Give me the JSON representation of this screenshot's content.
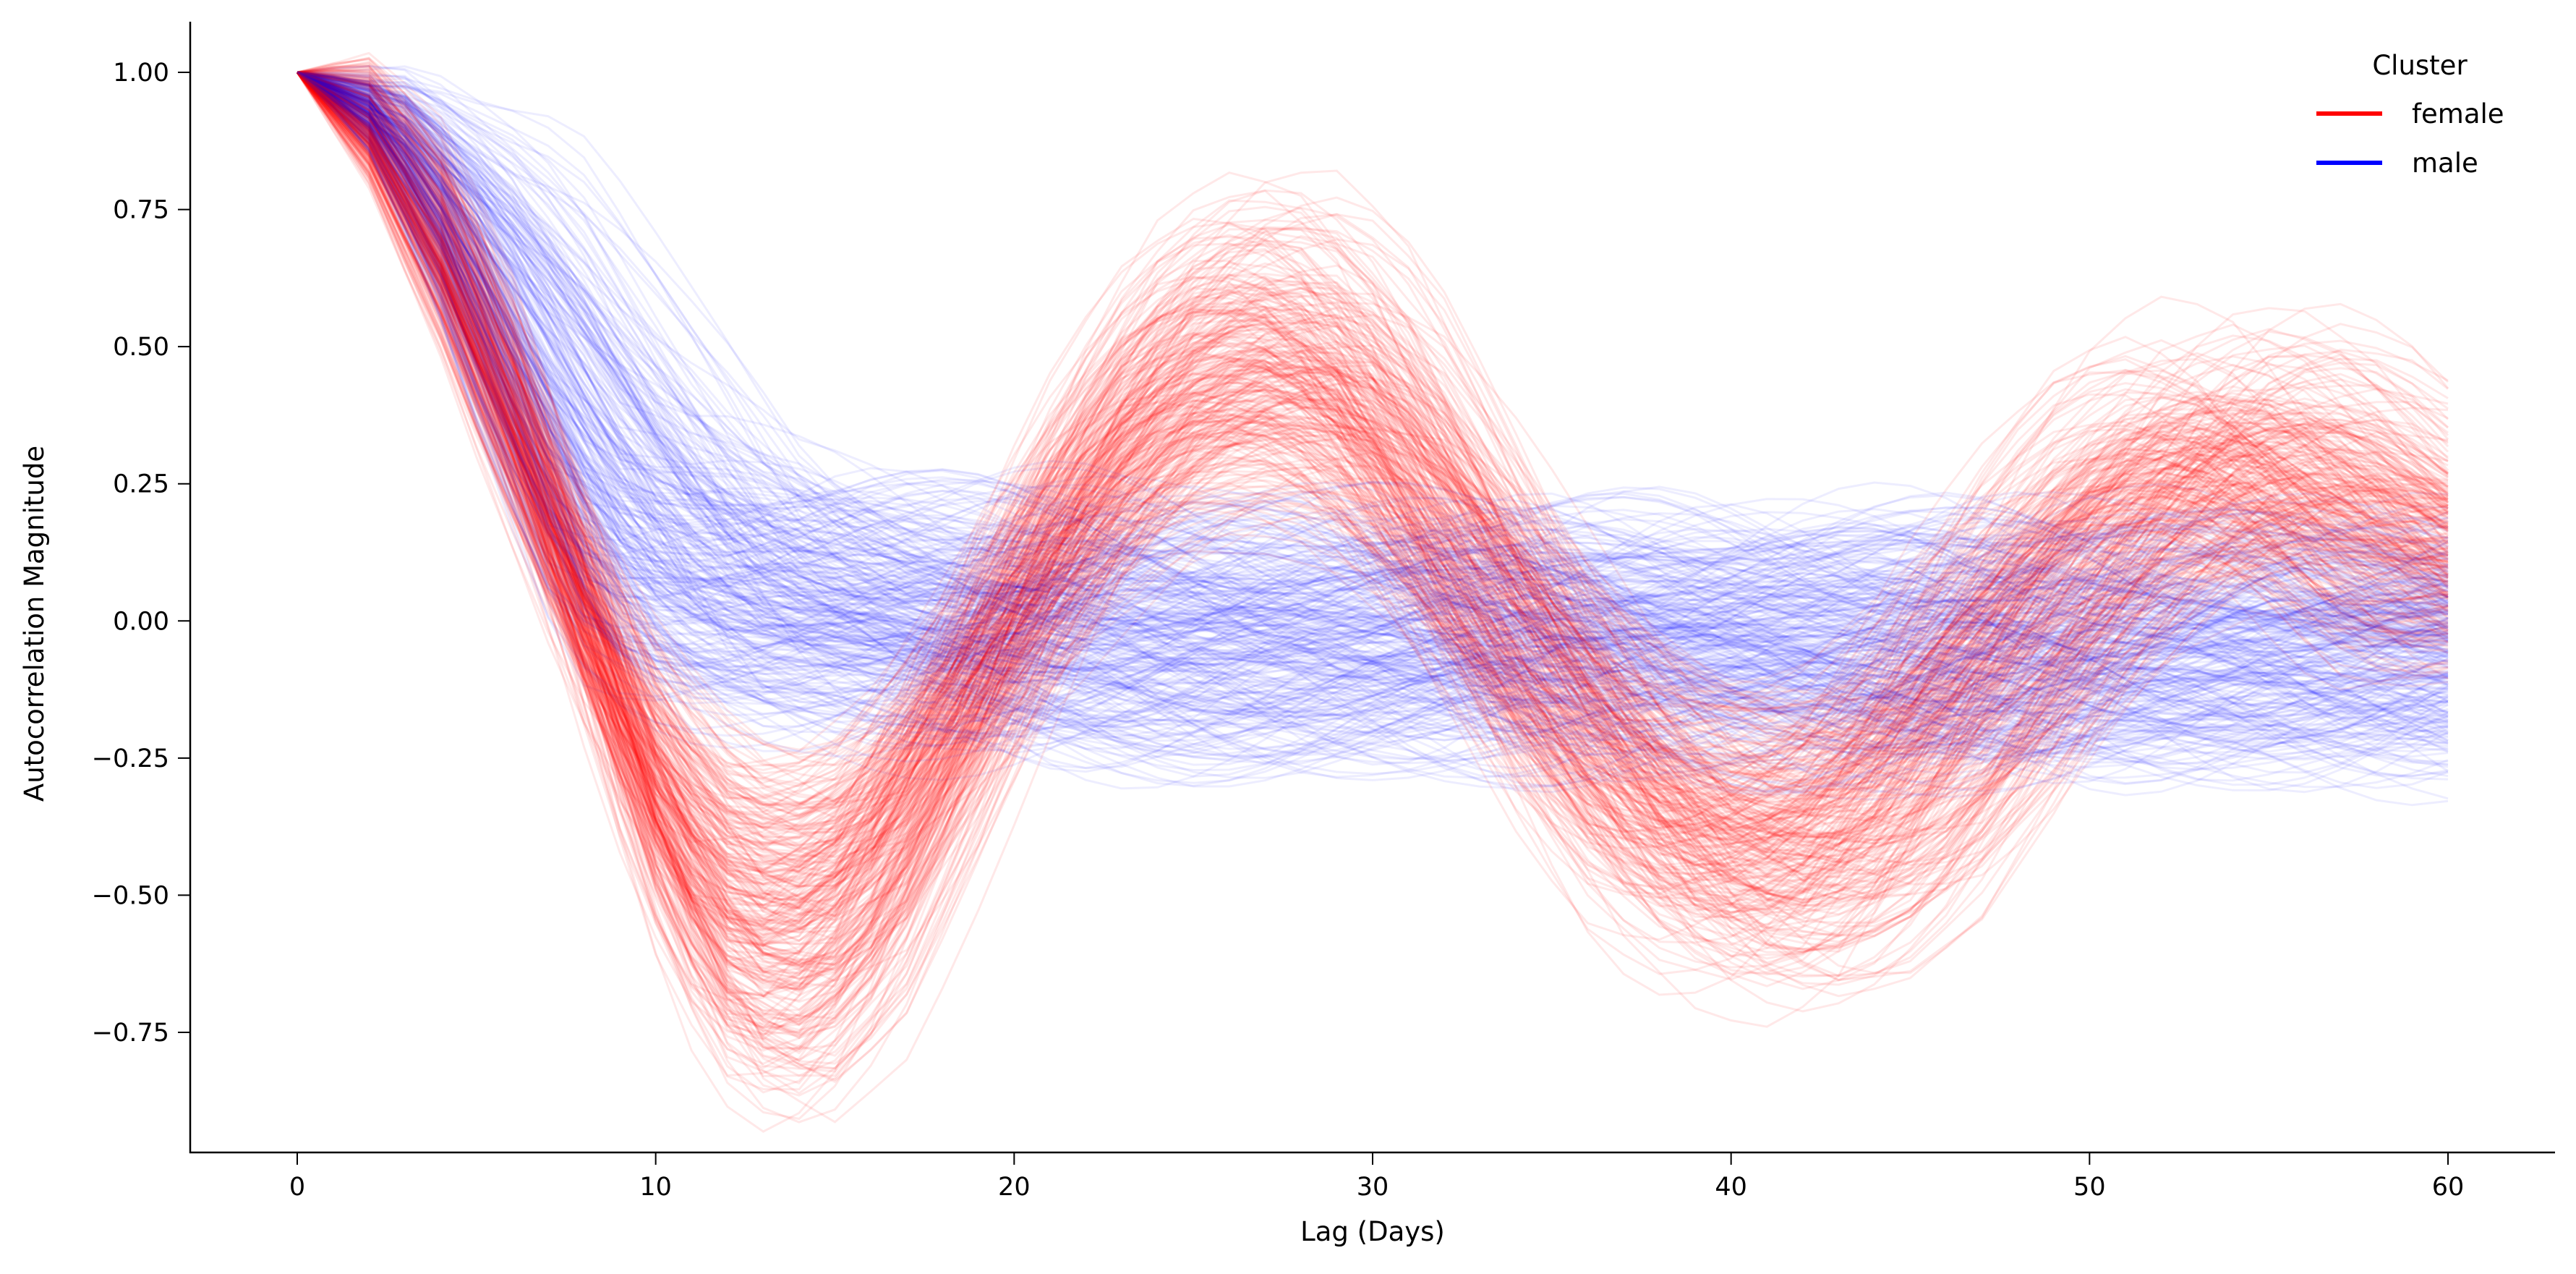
{
  "chart_data": {
    "type": "line",
    "title": "",
    "xlabel": "Lag (Days)",
    "ylabel": "Autocorrelation Magnitude",
    "xlim": [
      -3,
      63
    ],
    "ylim": [
      -0.95,
      1.09
    ],
    "xticks": [
      0,
      10,
      20,
      30,
      40,
      50,
      60
    ],
    "xtick_labels": [
      "0",
      "10",
      "20",
      "30",
      "40",
      "50",
      "60"
    ],
    "yticks": [
      1.0,
      0.75,
      0.5,
      0.25,
      0.0,
      -0.25,
      -0.5,
      -0.75
    ],
    "ytick_labels": [
      "1.00",
      "0.75",
      "0.50",
      "0.25",
      "0.00",
      "−0.25",
      "−0.50",
      "−0.75"
    ],
    "grid": false,
    "legend": {
      "title": "Cluster",
      "placement": "top-right"
    },
    "x": [
      0,
      2,
      4,
      6,
      8,
      10,
      12,
      14,
      16,
      18,
      20,
      22,
      24,
      26,
      28,
      30,
      32,
      34,
      36,
      38,
      40,
      42,
      44,
      46,
      48,
      50,
      52,
      54,
      56,
      58,
      60
    ],
    "series": [
      {
        "name": "female",
        "color": "#ff0000",
        "values": [
          1.0,
          0.93,
          0.72,
          0.4,
          0.02,
          -0.35,
          -0.58,
          -0.62,
          -0.5,
          -0.25,
          0.02,
          0.25,
          0.42,
          0.5,
          0.5,
          0.4,
          0.2,
          -0.02,
          -0.22,
          -0.38,
          -0.45,
          -0.45,
          -0.38,
          -0.22,
          -0.02,
          0.15,
          0.28,
          0.33,
          0.3,
          0.2,
          0.08
        ]
      },
      {
        "name": "male",
        "color": "#0000ff",
        "values": [
          1.0,
          0.92,
          0.7,
          0.4,
          0.15,
          0.06,
          0.03,
          0.01,
          0.0,
          -0.01,
          -0.02,
          -0.02,
          -0.02,
          -0.03,
          -0.03,
          -0.03,
          -0.03,
          -0.04,
          -0.04,
          -0.04,
          -0.04,
          -0.04,
          -0.04,
          -0.04,
          -0.05,
          -0.05,
          -0.05,
          -0.05,
          -0.05,
          -0.05,
          -0.05
        ]
      }
    ]
  }
}
